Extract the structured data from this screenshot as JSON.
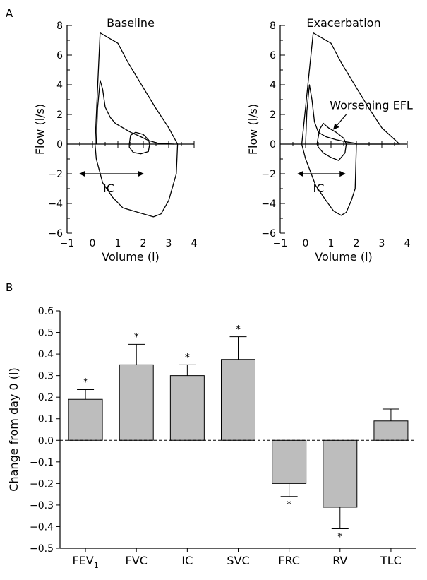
{
  "figure": {
    "panel_a_label": "A",
    "panel_b_label": "B"
  },
  "chart_data": [
    {
      "type": "line",
      "title": "Baseline",
      "xlabel": "Volume (l)",
      "ylabel": "Flow (l/s)",
      "xlim": [
        -1,
        4
      ],
      "ylim": [
        -6,
        8
      ],
      "x_ticks": [
        "−1",
        "0",
        "1",
        "2",
        "3",
        "4"
      ],
      "y_ticks": [
        "8",
        "6",
        "4",
        "2",
        "0",
        "−2",
        "−4",
        "−6"
      ],
      "annotations": [
        {
          "text": "IC",
          "from_x": -0.5,
          "to_x": 2.0,
          "y": -2.0
        }
      ],
      "series": [
        {
          "role": "maximal loop",
          "points": [
            [
              0.1,
              0
            ],
            [
              0.3,
              7.5
            ],
            [
              1.0,
              6.8
            ],
            [
              1.4,
              5.5
            ],
            [
              2.0,
              3.8
            ],
            [
              2.5,
              2.4
            ],
            [
              3.0,
              1.1
            ],
            [
              3.35,
              0
            ],
            [
              3.3,
              -2.0
            ],
            [
              3.0,
              -3.8
            ],
            [
              2.7,
              -4.7
            ],
            [
              2.4,
              -4.9
            ],
            [
              1.8,
              -4.6
            ],
            [
              1.2,
              -4.3
            ],
            [
              0.8,
              -3.6
            ],
            [
              0.4,
              -2.6
            ],
            [
              0.15,
              -1.0
            ],
            [
              0.1,
              0
            ]
          ]
        },
        {
          "role": "forced expiration",
          "points": [
            [
              0.15,
              0
            ],
            [
              0.2,
              2.4
            ],
            [
              0.3,
              4.3
            ],
            [
              0.4,
              3.7
            ],
            [
              0.5,
              2.5
            ],
            [
              0.7,
              1.8
            ],
            [
              0.9,
              1.4
            ],
            [
              1.2,
              1.1
            ],
            [
              1.5,
              0.8
            ],
            [
              1.9,
              0.5
            ],
            [
              2.2,
              0.25
            ],
            [
              2.6,
              0.05
            ],
            [
              3.2,
              0
            ]
          ]
        },
        {
          "role": "tidal loop",
          "points": [
            [
              1.45,
              0
            ],
            [
              1.5,
              0.6
            ],
            [
              1.7,
              0.8
            ],
            [
              2.0,
              0.65
            ],
            [
              2.2,
              0.3
            ],
            [
              2.25,
              0
            ],
            [
              2.2,
              -0.5
            ],
            [
              1.9,
              -0.65
            ],
            [
              1.6,
              -0.55
            ],
            [
              1.45,
              -0.2
            ],
            [
              1.45,
              0
            ]
          ]
        }
      ]
    },
    {
      "type": "line",
      "title": "Exacerbation",
      "xlabel": "Volume (l)",
      "ylabel": "Flow (l/s)",
      "xlim": [
        -1,
        4
      ],
      "ylim": [
        -6,
        8
      ],
      "x_ticks": [
        "−1",
        "0",
        "1",
        "2",
        "3",
        "4"
      ],
      "y_ticks": [
        "8",
        "6",
        "4",
        "2",
        "0",
        "−2",
        "−4",
        "−6"
      ],
      "annotations": [
        {
          "text": "Worsening EFL",
          "arrow_to": [
            1.1,
            1.0
          ]
        },
        {
          "text": "IC",
          "from_x": -0.3,
          "to_x": 1.55,
          "y": -2.0
        }
      ],
      "series": [
        {
          "role": "maximal loop",
          "points": [
            [
              -0.15,
              0
            ],
            [
              0.3,
              7.5
            ],
            [
              1.0,
              6.8
            ],
            [
              1.4,
              5.5
            ],
            [
              2.0,
              3.8
            ],
            [
              2.5,
              2.4
            ],
            [
              3.0,
              1.1
            ],
            [
              3.7,
              0
            ],
            [
              2.0,
              0
            ],
            [
              1.95,
              -3.0
            ],
            [
              1.8,
              -3.8
            ],
            [
              1.6,
              -4.6
            ],
            [
              1.4,
              -4.8
            ],
            [
              1.1,
              -4.5
            ],
            [
              0.8,
              -3.8
            ],
            [
              0.4,
              -2.8
            ],
            [
              0.0,
              -1.0
            ],
            [
              -0.15,
              0
            ]
          ]
        },
        {
          "role": "forced expiration",
          "points": [
            [
              0.0,
              0
            ],
            [
              0.05,
              2.2
            ],
            [
              0.15,
              4.0
            ],
            [
              0.25,
              3.0
            ],
            [
              0.35,
              1.5
            ],
            [
              0.5,
              0.8
            ],
            [
              0.8,
              0.5
            ],
            [
              1.2,
              0.3
            ],
            [
              1.6,
              0.15
            ],
            [
              2.0,
              0.05
            ]
          ]
        },
        {
          "role": "tidal loop",
          "points": [
            [
              0.45,
              0
            ],
            [
              0.55,
              1.0
            ],
            [
              0.7,
              1.4
            ],
            [
              0.9,
              1.1
            ],
            [
              1.2,
              0.8
            ],
            [
              1.5,
              0.4
            ],
            [
              1.6,
              0
            ],
            [
              1.55,
              -0.6
            ],
            [
              1.3,
              -1.1
            ],
            [
              1.0,
              -0.9
            ],
            [
              0.7,
              -0.6
            ],
            [
              0.5,
              -0.2
            ],
            [
              0.45,
              0
            ]
          ]
        }
      ]
    },
    {
      "type": "bar",
      "ylabel": "Change from day 0 (l)",
      "categories": [
        "FEV",
        "FVC",
        "IC",
        "SVC",
        "FRC",
        "RV",
        "TLC"
      ],
      "category_subscripts": [
        "1",
        "",
        "",
        "",
        "",
        "",
        ""
      ],
      "values": [
        0.19,
        0.35,
        0.3,
        0.375,
        -0.2,
        -0.31,
        0.09
      ],
      "errors": [
        0.045,
        0.095,
        0.05,
        0.105,
        0.06,
        0.1,
        0.055
      ],
      "significant": [
        true,
        true,
        true,
        true,
        true,
        true,
        false
      ],
      "significance_marker": "*",
      "ylim": [
        -0.5,
        0.6
      ],
      "y_ticks": [
        "0.6",
        "0.5",
        "0.4",
        "0.3",
        "0.2",
        "0.1",
        "0.0",
        "−0.1",
        "−0.2",
        "−0.3",
        "−0.4",
        "−0.5"
      ],
      "bar_color": "#bdbdbd",
      "zero_line": "dashed"
    }
  ]
}
